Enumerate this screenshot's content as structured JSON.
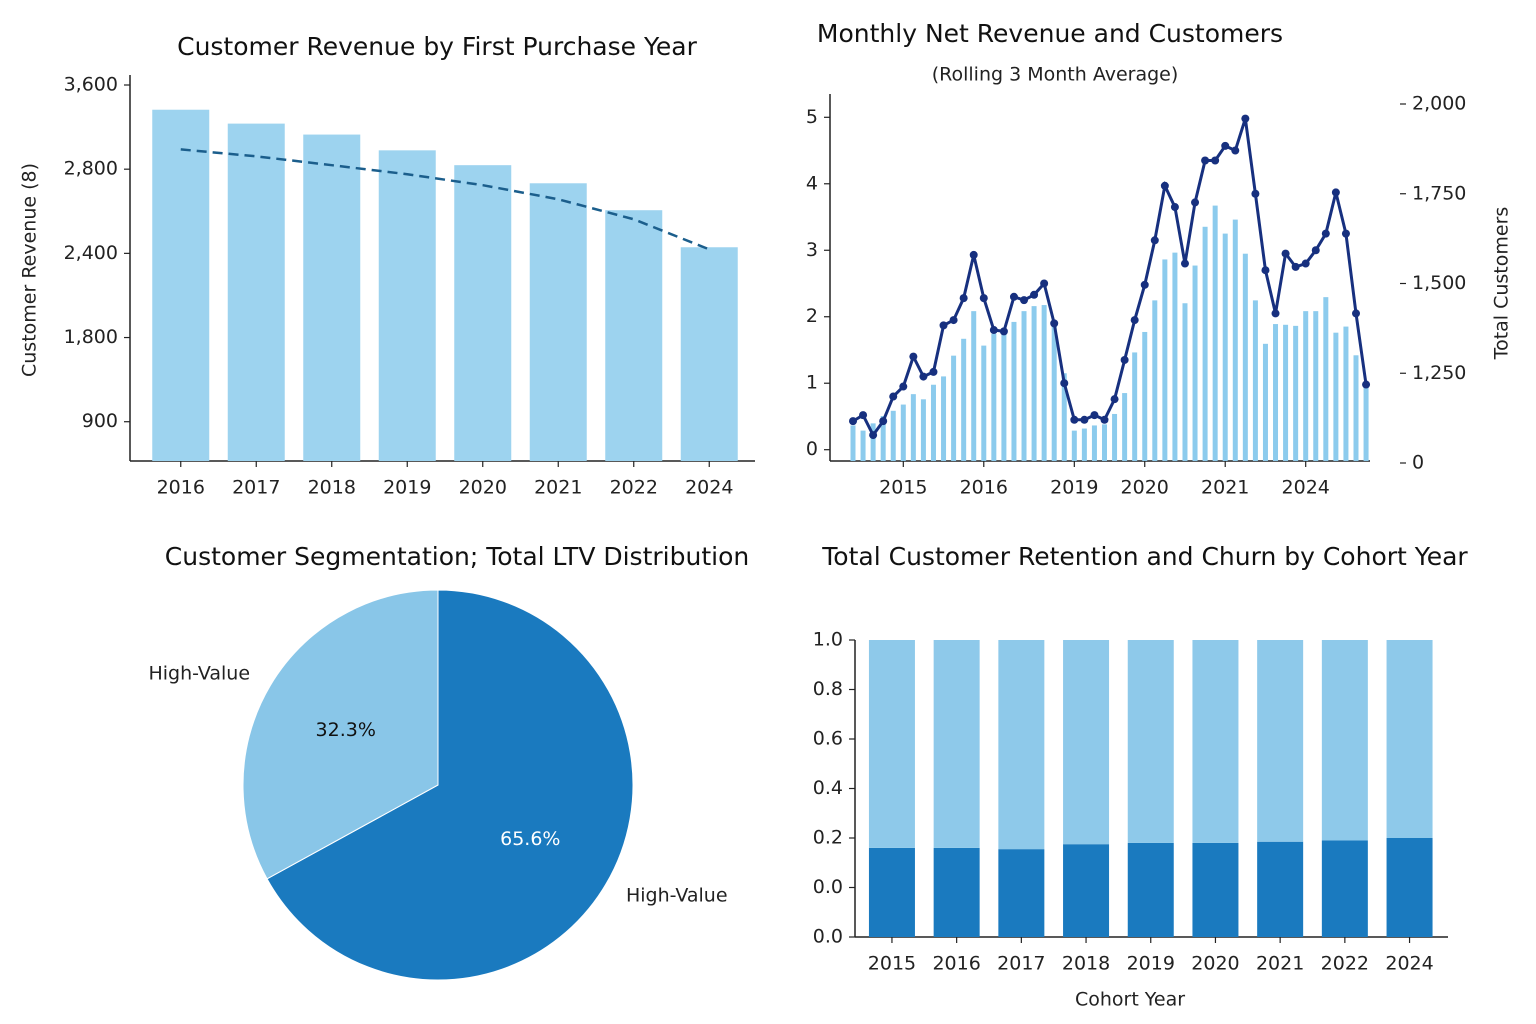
{
  "chart_data": [
    {
      "type": "combo",
      "title": "Customer Revenue by First Purchase Year",
      "y_label": "Customer Revenue (8)",
      "categories": [
        "2016",
        "2017",
        "2018",
        "2019",
        "2020",
        "2021",
        "2022",
        "2024"
      ],
      "series": [
        {
          "type": "bar",
          "color": "#9dd3ef",
          "values": [
            3365,
            3233,
            3129,
            2979,
            2838,
            2733,
            2605,
            2429
          ]
        },
        {
          "type": "line",
          "color": "#1b5e8c",
          "dashed": true,
          "values": [
            2988,
            2922,
            2838,
            2776,
            2724,
            2657,
            2562,
            2419
          ]
        }
      ],
      "ylim": [
        480,
        3600
      ],
      "yscale": "piecewise",
      "yticks": [
        900,
        {
          "value": 1800,
          "label": "1,800"
        },
        {
          "value": 2400,
          "label": "2,400"
        },
        {
          "value": 2800,
          "label": "2,800"
        },
        {
          "value": 3600,
          "label": "3,600"
        }
      ]
    },
    {
      "type": "combo",
      "title": "Monthly Net Revenue and Customers",
      "subtitle": "(Rolling 3 Month Average)",
      "y2_label": "Total Customers",
      "categories": [
        null,
        null,
        null,
        null,
        null,
        "2015",
        null,
        null,
        null,
        null,
        null,
        null,
        null,
        "2016",
        null,
        null,
        null,
        null,
        null,
        null,
        null,
        null,
        "2019",
        null,
        null,
        null,
        null,
        null,
        null,
        "2020",
        null,
        null,
        null,
        null,
        null,
        null,
        null,
        "2021",
        null,
        null,
        null,
        null,
        null,
        null,
        null,
        "2024",
        null,
        null,
        null,
        null,
        null,
        null
      ],
      "series": [
        {
          "type": "bar",
          "axis": "y2",
          "color": "#8ccbed",
          "values": [
            523,
            451,
            552,
            654,
            727,
            814,
            959,
            887,
            1090,
            1206,
            1299,
            1346,
            1423,
            1327,
            1360,
            1374,
            1393,
            1423,
            1437,
            1440,
            1387,
            1250,
            451,
            480,
            523,
            538,
            683,
            974,
            1308,
            1365,
            1453,
            1567,
            1586,
            1445,
            1550,
            1658,
            1717,
            1639,
            1678,
            1583,
            1453,
            1332,
            1387,
            1385,
            1382,
            1423,
            1423,
            1462,
            1363,
            1380,
            1300,
            1100
          ]
        },
        {
          "type": "line",
          "color": "#17307f",
          "markers": true,
          "values": [
            0.43,
            0.52,
            0.22,
            0.43,
            0.8,
            0.95,
            1.4,
            1.1,
            1.17,
            1.87,
            1.95,
            2.28,
            2.93,
            2.28,
            1.8,
            1.78,
            2.3,
            2.25,
            2.33,
            2.5,
            1.9,
            1.0,
            0.45,
            0.45,
            0.52,
            0.45,
            0.76,
            1.35,
            1.95,
            2.48,
            3.15,
            3.97,
            3.65,
            2.8,
            3.72,
            4.35,
            4.35,
            4.57,
            4.5,
            4.98,
            3.85,
            2.7,
            2.05,
            2.95,
            2.75,
            2.8,
            3.0,
            3.25,
            3.87,
            3.25,
            2.05,
            0.98
          ]
        }
      ],
      "ylim": [
        -0.2,
        5.2
      ],
      "yticks": [
        0,
        1,
        2,
        3,
        4,
        5
      ],
      "y2lim": [
        0,
        2000
      ],
      "y2scale": "piecewise",
      "y2ticks": [
        0,
        {
          "value": 1250,
          "label": "1,250"
        },
        {
          "value": 1500,
          "label": "1,500"
        },
        {
          "value": 1750,
          "label": "1,750"
        },
        {
          "value": 2000,
          "label": "2,000"
        }
      ]
    },
    {
      "type": "pie",
      "title": "Customer Segmentation; Total LTV Distribution",
      "labels": [
        "High-Value",
        "High-Value"
      ],
      "values": [
        65.6,
        32.3
      ],
      "value_labels": [
        "65.6%",
        "32.3%"
      ],
      "colors": [
        "#1a7abf",
        "#89c6e8"
      ],
      "value_label_colors": [
        "#ffffff",
        "#111111"
      ]
    },
    {
      "type": "stacked_bar",
      "title": "Total Customer Retention and Churn by Cohort Year",
      "x_label": "Cohort Year",
      "categories": [
        "2015",
        "2016",
        "2017",
        "2018",
        "2019",
        "2020",
        "2021",
        "2022",
        "2024"
      ],
      "series": [
        {
          "color": "#1a7abf",
          "values": [
            0.16,
            0.16,
            0.155,
            0.175,
            0.18,
            0.18,
            0.185,
            0.19,
            0.2
          ]
        },
        {
          "color": "#8ec9ea",
          "values": [
            0.84,
            0.84,
            0.845,
            0.825,
            0.82,
            0.82,
            0.815,
            0.81,
            0.8
          ]
        }
      ],
      "ylim": [
        0,
        1
      ],
      "yscale": "piecewise",
      "yticks": [
        {
          "value": 0,
          "label": "0.0"
        },
        {
          "value": 0,
          "label": "0.0"
        },
        0.2,
        0.4,
        0.6,
        0.8,
        {
          "value": 1,
          "label": "1.0"
        }
      ]
    }
  ]
}
